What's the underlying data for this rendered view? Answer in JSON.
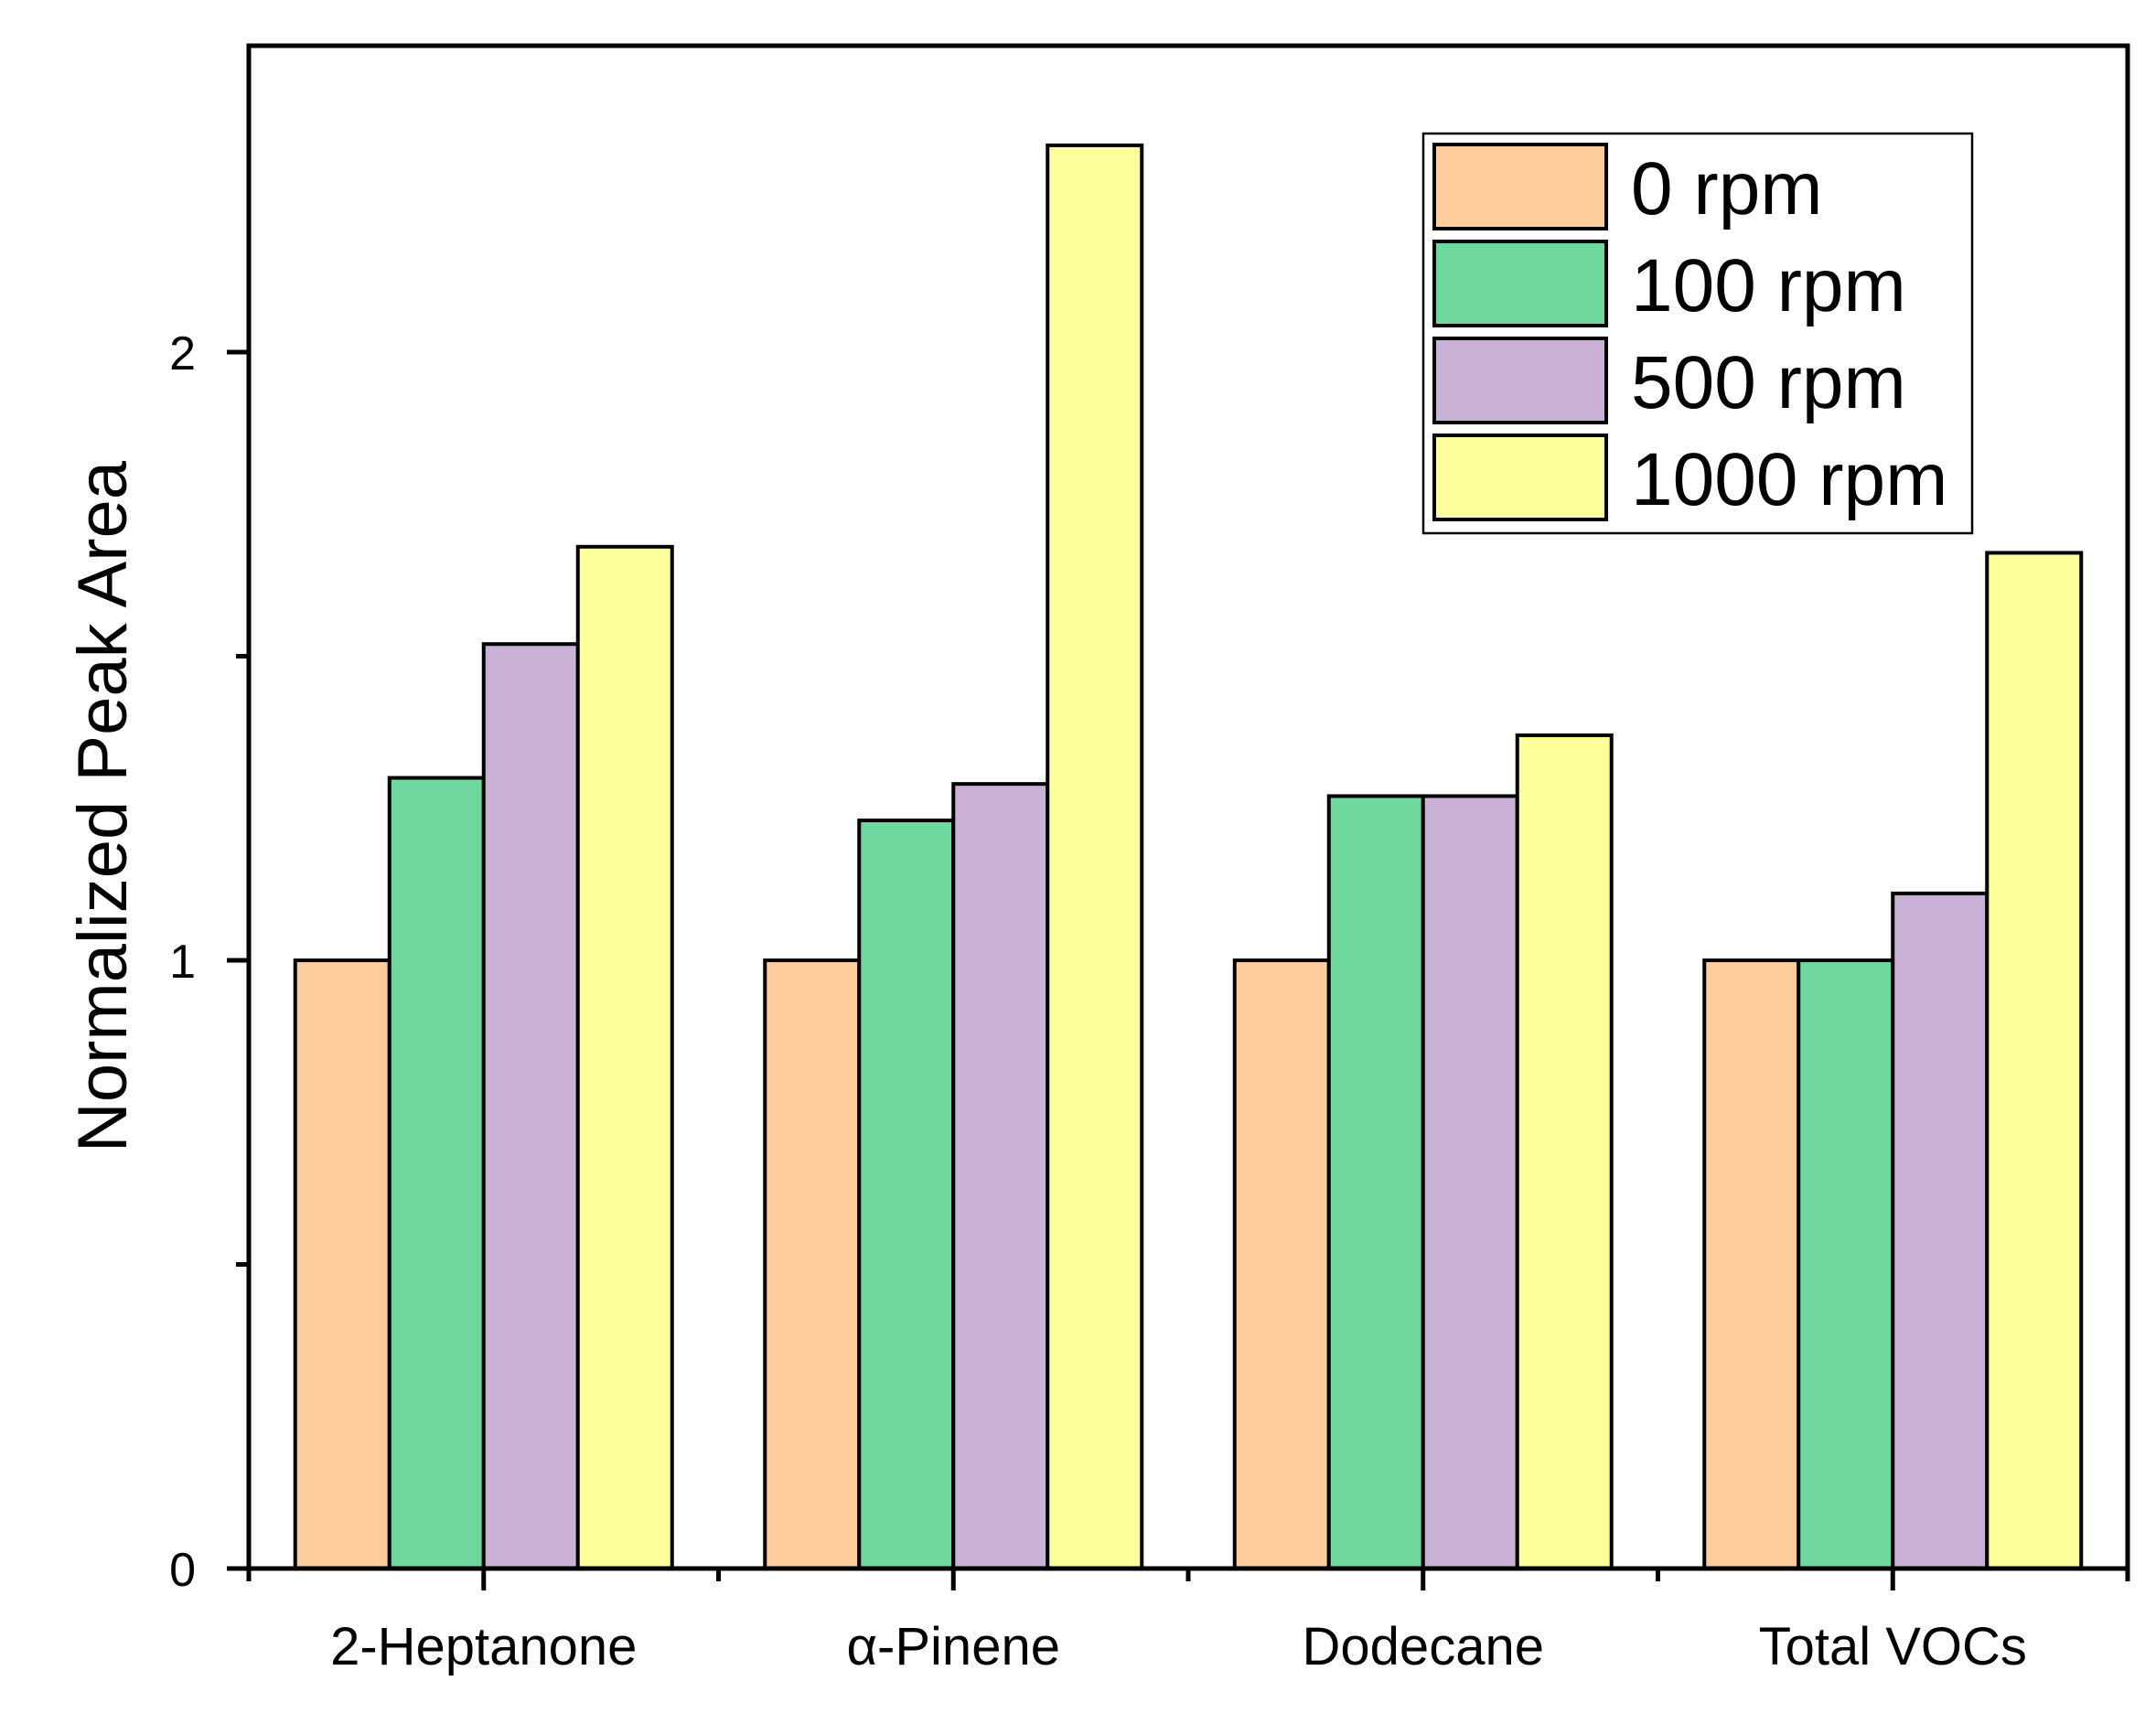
{
  "chart_data": {
    "type": "bar",
    "title": "",
    "xlabel": "",
    "ylabel": "Normalized Peak Area",
    "ylim": [
      0,
      2.5
    ],
    "yticks": [
      "0",
      "1",
      "2"
    ],
    "categories": [
      "2-Heptanone",
      "α-Pinene",
      "Dodecane",
      "Total VOCs"
    ],
    "series": [
      {
        "name": "0 rpm",
        "color": "#FDCB9C",
        "values": [
          1.0,
          1.0,
          1.0,
          1.0
        ]
      },
      {
        "name": "100 rpm",
        "color": "#6ED89E",
        "values": [
          1.3,
          1.23,
          1.27,
          1.0
        ]
      },
      {
        "name": "500 rpm",
        "color": "#CAB1D6",
        "values": [
          1.52,
          1.29,
          1.27,
          1.11
        ]
      },
      {
        "name": "1000 rpm",
        "color": "#FDFE9C",
        "values": [
          1.68,
          2.34,
          1.37,
          1.67
        ]
      }
    ],
    "legend_position": "top-right",
    "grid": false
  }
}
